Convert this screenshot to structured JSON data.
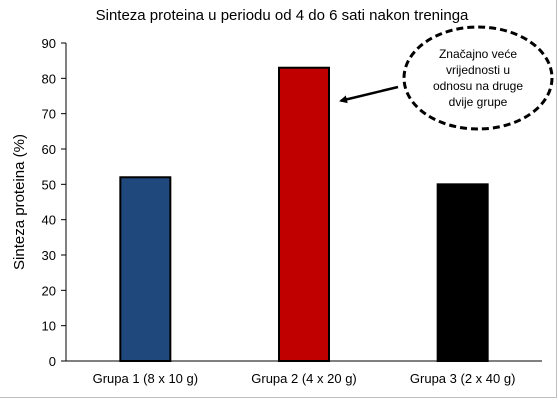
{
  "chart_data": {
    "type": "bar",
    "title": "Sinteza proteina u periodu od 4 do 6 sati nakon treninga",
    "ylabel": "Sinteza proteina (%)",
    "xlabel": "",
    "ylim": [
      0,
      90
    ],
    "yticks": [
      0,
      10,
      20,
      30,
      40,
      50,
      60,
      70,
      80,
      90
    ],
    "grid": false,
    "categories": [
      "Grupa 1 (8 x 10 g)",
      "Grupa 2 (4 x 20 g)",
      "Grupa 3 (2 x 40 g)"
    ],
    "values": [
      52,
      83,
      50
    ],
    "colors": [
      "#1f497d",
      "#c00000",
      "#000000"
    ],
    "annotation": {
      "text": [
        "Značajno veće",
        "vrijednosti u",
        "odnosu na druge",
        "dvije grupe"
      ],
      "target_category": "Grupa 2 (4 x 20 g)",
      "shape": "dashed-ellipse-with-arrow"
    }
  }
}
